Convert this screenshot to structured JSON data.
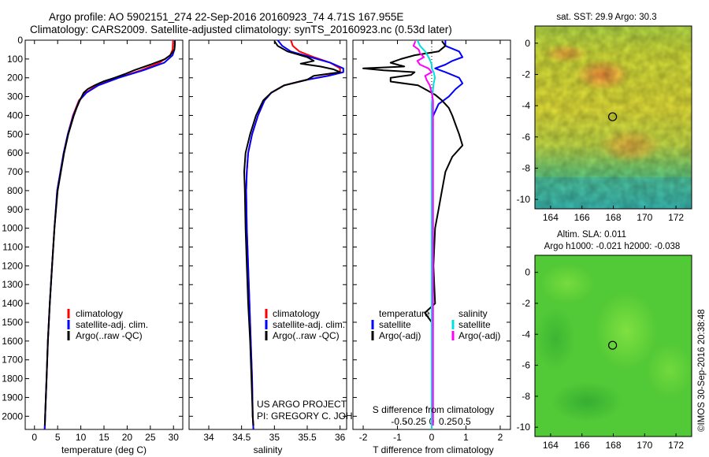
{
  "header": {
    "line1": "Argo profile: AO 5902151_274 22-Sep-2016 20160923_74 4.71S 167.955E",
    "line2": "Climatology: CARS2009. Satellite-adjusted climatology: synTS_20160923.nc (0.53d later)"
  },
  "credit": {
    "project": "US ARGO PROJECT",
    "pi": "PI: GREGORY C. JOHNSON",
    "stamp": "©IMOS 30-Sep-2016 20:38:48"
  },
  "colors": {
    "climatology": "#ff0000",
    "satellite": "#0000ff",
    "argo": "#000000",
    "sal_satellite": "#00e0e0",
    "sal_argo": "#ff00ff",
    "marker": "#000000"
  },
  "chart_data": [
    {
      "type": "line",
      "name": "temperature-profile",
      "xlabel": "temperature (deg C)",
      "ylabel": "depth",
      "xlim": [
        -2,
        32
      ],
      "ylim": [
        2070,
        0
      ],
      "xticks": [
        "0",
        "5",
        "10",
        "15",
        "20",
        "25",
        "30"
      ],
      "xtick_values": [
        0,
        5,
        10,
        15,
        20,
        25,
        30
      ],
      "yticks": [
        "0",
        "100",
        "200",
        "300",
        "400",
        "500",
        "600",
        "700",
        "800",
        "900",
        "1000",
        "1100",
        "1200",
        "1300",
        "1400",
        "1500",
        "1600",
        "1700",
        "1800",
        "1900",
        "2000"
      ],
      "ytick_values": [
        0,
        100,
        200,
        300,
        400,
        500,
        600,
        700,
        800,
        900,
        1000,
        1100,
        1200,
        1300,
        1400,
        1500,
        1600,
        1700,
        1800,
        1900,
        2000
      ],
      "legend": [
        "climatology",
        "satellite-adj. clim.",
        "Argo(..raw -QC)"
      ],
      "series": [
        {
          "name": "climatology",
          "color": "#ff0000",
          "depth": [
            0,
            10,
            50,
            80,
            120,
            160,
            200,
            240,
            280,
            320,
            400,
            500,
            600,
            700,
            800,
            1000,
            1200,
            1400,
            1600,
            1800,
            2000,
            2070
          ],
          "values": [
            29.9,
            29.9,
            29.8,
            29.3,
            27.0,
            23.0,
            18.0,
            13.5,
            11.0,
            9.6,
            8.3,
            7.2,
            6.3,
            5.6,
            4.9,
            4.3,
            3.8,
            3.3,
            2.9,
            2.6,
            2.3,
            2.2
          ]
        },
        {
          "name": "satellite-adj. clim.",
          "color": "#0000ff",
          "depth": [
            0,
            10,
            50,
            80,
            120,
            160,
            200,
            240,
            280,
            320,
            400,
            500,
            600,
            700,
            800,
            1000,
            1200,
            1400,
            1600,
            1800,
            2000,
            2070
          ],
          "values": [
            30.3,
            30.3,
            30.2,
            29.8,
            28.0,
            23.5,
            18.2,
            13.8,
            11.2,
            9.7,
            8.4,
            7.2,
            6.3,
            5.6,
            4.9,
            4.3,
            3.8,
            3.3,
            2.9,
            2.6,
            2.3,
            2.2
          ]
        },
        {
          "name": "Argo(..raw -QC)",
          "color": "#000000",
          "depth": [
            5,
            20,
            50,
            80,
            100,
            130,
            160,
            180,
            200,
            220,
            240,
            260,
            280,
            320,
            360,
            400,
            500,
            600,
            700,
            800,
            1000,
            1200,
            1400,
            1600,
            1800,
            2000,
            2050
          ],
          "values": [
            30.3,
            30.3,
            30.2,
            29.3,
            28.2,
            25.0,
            21.5,
            19.5,
            17.3,
            14.8,
            13.0,
            11.5,
            10.6,
            9.8,
            9.1,
            8.5,
            7.3,
            6.4,
            5.7,
            5.0,
            4.3,
            3.8,
            3.3,
            2.9,
            2.6,
            2.3,
            2.25
          ]
        }
      ]
    },
    {
      "type": "line",
      "name": "salinity-profile",
      "xlabel": "salinity",
      "xlim": [
        33.7,
        36.1
      ],
      "ylim": [
        2070,
        0
      ],
      "xticks": [
        "34",
        "34.5",
        "35",
        "35.5",
        "36"
      ],
      "xtick_values": [
        34,
        34.5,
        35,
        35.5,
        36
      ],
      "legend": [
        "climatology",
        "satellite-adj. clim.",
        "Argo(..raw -QC)"
      ],
      "series": [
        {
          "name": "climatology",
          "color": "#ff0000",
          "depth": [
            0,
            30,
            60,
            90,
            120,
            150,
            170,
            190,
            210,
            240,
            280,
            320,
            400,
            500,
            600,
            700,
            800,
            1000,
            1200,
            1400,
            1600,
            1800,
            2000,
            2070
          ],
          "values": [
            35.25,
            35.28,
            35.38,
            35.6,
            35.85,
            36.0,
            36.0,
            35.8,
            35.5,
            35.15,
            34.95,
            34.85,
            34.75,
            34.66,
            34.6,
            34.58,
            34.57,
            34.58,
            34.6,
            34.62,
            34.64,
            34.66,
            34.67,
            34.68
          ]
        },
        {
          "name": "satellite-adj. clim.",
          "color": "#0000ff",
          "depth": [
            0,
            30,
            60,
            90,
            120,
            150,
            170,
            190,
            210,
            240,
            280,
            320,
            400,
            500,
            600,
            700,
            800,
            1000,
            1200,
            1400,
            1600,
            1800,
            2000,
            2070
          ],
          "values": [
            35.05,
            35.12,
            35.25,
            35.55,
            35.85,
            36.05,
            36.05,
            35.82,
            35.5,
            35.15,
            34.95,
            34.85,
            34.75,
            34.66,
            34.6,
            34.58,
            34.57,
            34.58,
            34.6,
            34.62,
            34.64,
            34.66,
            34.67,
            34.68
          ]
        },
        {
          "name": "Argo(..raw -QC)",
          "color": "#000000",
          "depth": [
            5,
            30,
            60,
            90,
            110,
            125,
            140,
            155,
            170,
            190,
            210,
            240,
            280,
            320,
            400,
            500,
            600,
            700,
            800,
            1000,
            1200,
            1400,
            1600,
            1800,
            2000,
            2050
          ],
          "values": [
            35.0,
            35.05,
            35.2,
            35.5,
            35.6,
            35.4,
            35.7,
            35.9,
            36.0,
            35.6,
            35.5,
            35.15,
            34.95,
            34.83,
            34.72,
            34.63,
            34.56,
            34.54,
            34.55,
            34.56,
            34.58,
            34.6,
            34.63,
            34.65,
            34.67,
            34.68
          ]
        }
      ]
    },
    {
      "type": "line",
      "name": "difference-profile",
      "xlabel": "T difference from climatology",
      "xlabel_top": "S difference from climatology",
      "xlim": [
        -2.3,
        2.3
      ],
      "ylim": [
        2070,
        0
      ],
      "xticks_t": [
        "-2",
        "-1",
        "0",
        "1",
        "2"
      ],
      "xtick_values_t": [
        -2,
        -1,
        0,
        1,
        2
      ],
      "xticks_s": [
        "-0.5",
        "-0.25",
        "0",
        "0.25",
        "0.5"
      ],
      "xtick_values_s": [
        -0.5,
        -0.25,
        0,
        0.25,
        0.5
      ],
      "legend_temperature_title": "temperature",
      "legend_salinity_title": "salinity",
      "legend_temperature": [
        "satellite",
        "Argo(-adj)"
      ],
      "legend_salinity": [
        "satellite",
        "Argo(-adj)"
      ],
      "series": [
        {
          "name": "T satellite",
          "color": "#0000ff",
          "scale": "T",
          "depth": [
            0,
            30,
            60,
            90,
            110,
            130,
            150,
            170,
            200,
            230,
            260,
            300,
            340,
            380,
            420,
            500,
            700,
            1000,
            1400,
            1800,
            2000,
            2070
          ],
          "values": [
            0.4,
            0.4,
            0.8,
            0.9,
            0.6,
            0.4,
            0.1,
            0.4,
            0.8,
            0.9,
            0.7,
            0.5,
            0.2,
            0.1,
            0.0,
            0.0,
            0.0,
            0.0,
            0.0,
            0.0,
            0.0,
            0.0
          ]
        },
        {
          "name": "T Argo(-adj)",
          "color": "#000000",
          "scale": "T",
          "depth": [
            5,
            30,
            60,
            80,
            100,
            120,
            140,
            150,
            160,
            170,
            185,
            200,
            220,
            240,
            260,
            290,
            320,
            360,
            400,
            450,
            500,
            560,
            620,
            700,
            800,
            900,
            1000,
            1200,
            1400,
            1450,
            1500,
            1600,
            1800,
            2000,
            2050
          ],
          "values": [
            0.3,
            0.4,
            0.2,
            -0.5,
            -0.9,
            -1.2,
            -0.8,
            -2.0,
            -1.4,
            -0.5,
            -0.6,
            -1.2,
            -1.2,
            -0.4,
            -0.2,
            0.1,
            0.3,
            0.5,
            0.6,
            0.7,
            0.8,
            0.9,
            0.6,
            0.4,
            0.3,
            0.2,
            0.1,
            0.05,
            0.1,
            -0.2,
            0.0,
            0.0,
            0.0,
            0.0,
            0.0
          ]
        },
        {
          "name": "S satellite",
          "color": "#00e0e0",
          "scale": "S",
          "depth": [
            0,
            30,
            60,
            90,
            110,
            130,
            150,
            170,
            200,
            230,
            260,
            300,
            340,
            400,
            500,
            700,
            1000,
            1400,
            1800,
            2000,
            2070
          ],
          "values": [
            -0.22,
            -0.18,
            -0.1,
            -0.05,
            -0.02,
            0.0,
            0.0,
            0.03,
            0.05,
            0.03,
            0.02,
            0.01,
            0.0,
            0.0,
            0.0,
            0.0,
            0.0,
            0.0,
            0.0,
            0.0,
            0.0
          ]
        },
        {
          "name": "S Argo(-adj)",
          "color": "#ff00ff",
          "scale": "S",
          "depth": [
            5,
            30,
            50,
            70,
            90,
            110,
            130,
            150,
            170,
            190,
            210,
            240,
            280,
            320,
            400,
            500,
            700,
            1000,
            1400,
            1800,
            2000,
            2050
          ],
          "values": [
            -0.25,
            -0.28,
            -0.2,
            -0.18,
            -0.12,
            -0.22,
            -0.18,
            -0.05,
            0.0,
            -0.1,
            -0.08,
            -0.03,
            0.0,
            0.02,
            0.02,
            0.02,
            0.02,
            0.02,
            0.02,
            0.02,
            0.02,
            0.02
          ]
        }
      ]
    },
    {
      "type": "heatmap",
      "name": "sst-map",
      "title": "sat. SST: 29.9  Argo: 30.3",
      "xlim": [
        163,
        173
      ],
      "ylim": [
        -10.6,
        1.1
      ],
      "xticks": [
        "164",
        "166",
        "168",
        "170",
        "172"
      ],
      "xtick_values": [
        164,
        166,
        168,
        170,
        172
      ],
      "yticks": [
        "0",
        "-2",
        "-4",
        "-6",
        "-8",
        "-10"
      ],
      "ytick_values": [
        0,
        -2,
        -4,
        -6,
        -8,
        -10
      ],
      "marker": {
        "lon": 167.955,
        "lat": -4.71
      }
    },
    {
      "type": "heatmap",
      "name": "sla-map",
      "title_line1": "Altim. SLA: 0.011",
      "title_line2": "Argo h1000: -0.021 h2000: -0.038",
      "xlim": [
        163,
        173
      ],
      "ylim": [
        -10.6,
        1.1
      ],
      "xticks": [
        "164",
        "166",
        "168",
        "170",
        "172"
      ],
      "xtick_values": [
        164,
        166,
        168,
        170,
        172
      ],
      "yticks": [
        "0",
        "-2",
        "-4",
        "-6",
        "-8",
        "-10"
      ],
      "ytick_values": [
        0,
        -2,
        -4,
        -6,
        -8,
        -10
      ],
      "marker": {
        "lon": 167.955,
        "lat": -4.71
      }
    }
  ]
}
